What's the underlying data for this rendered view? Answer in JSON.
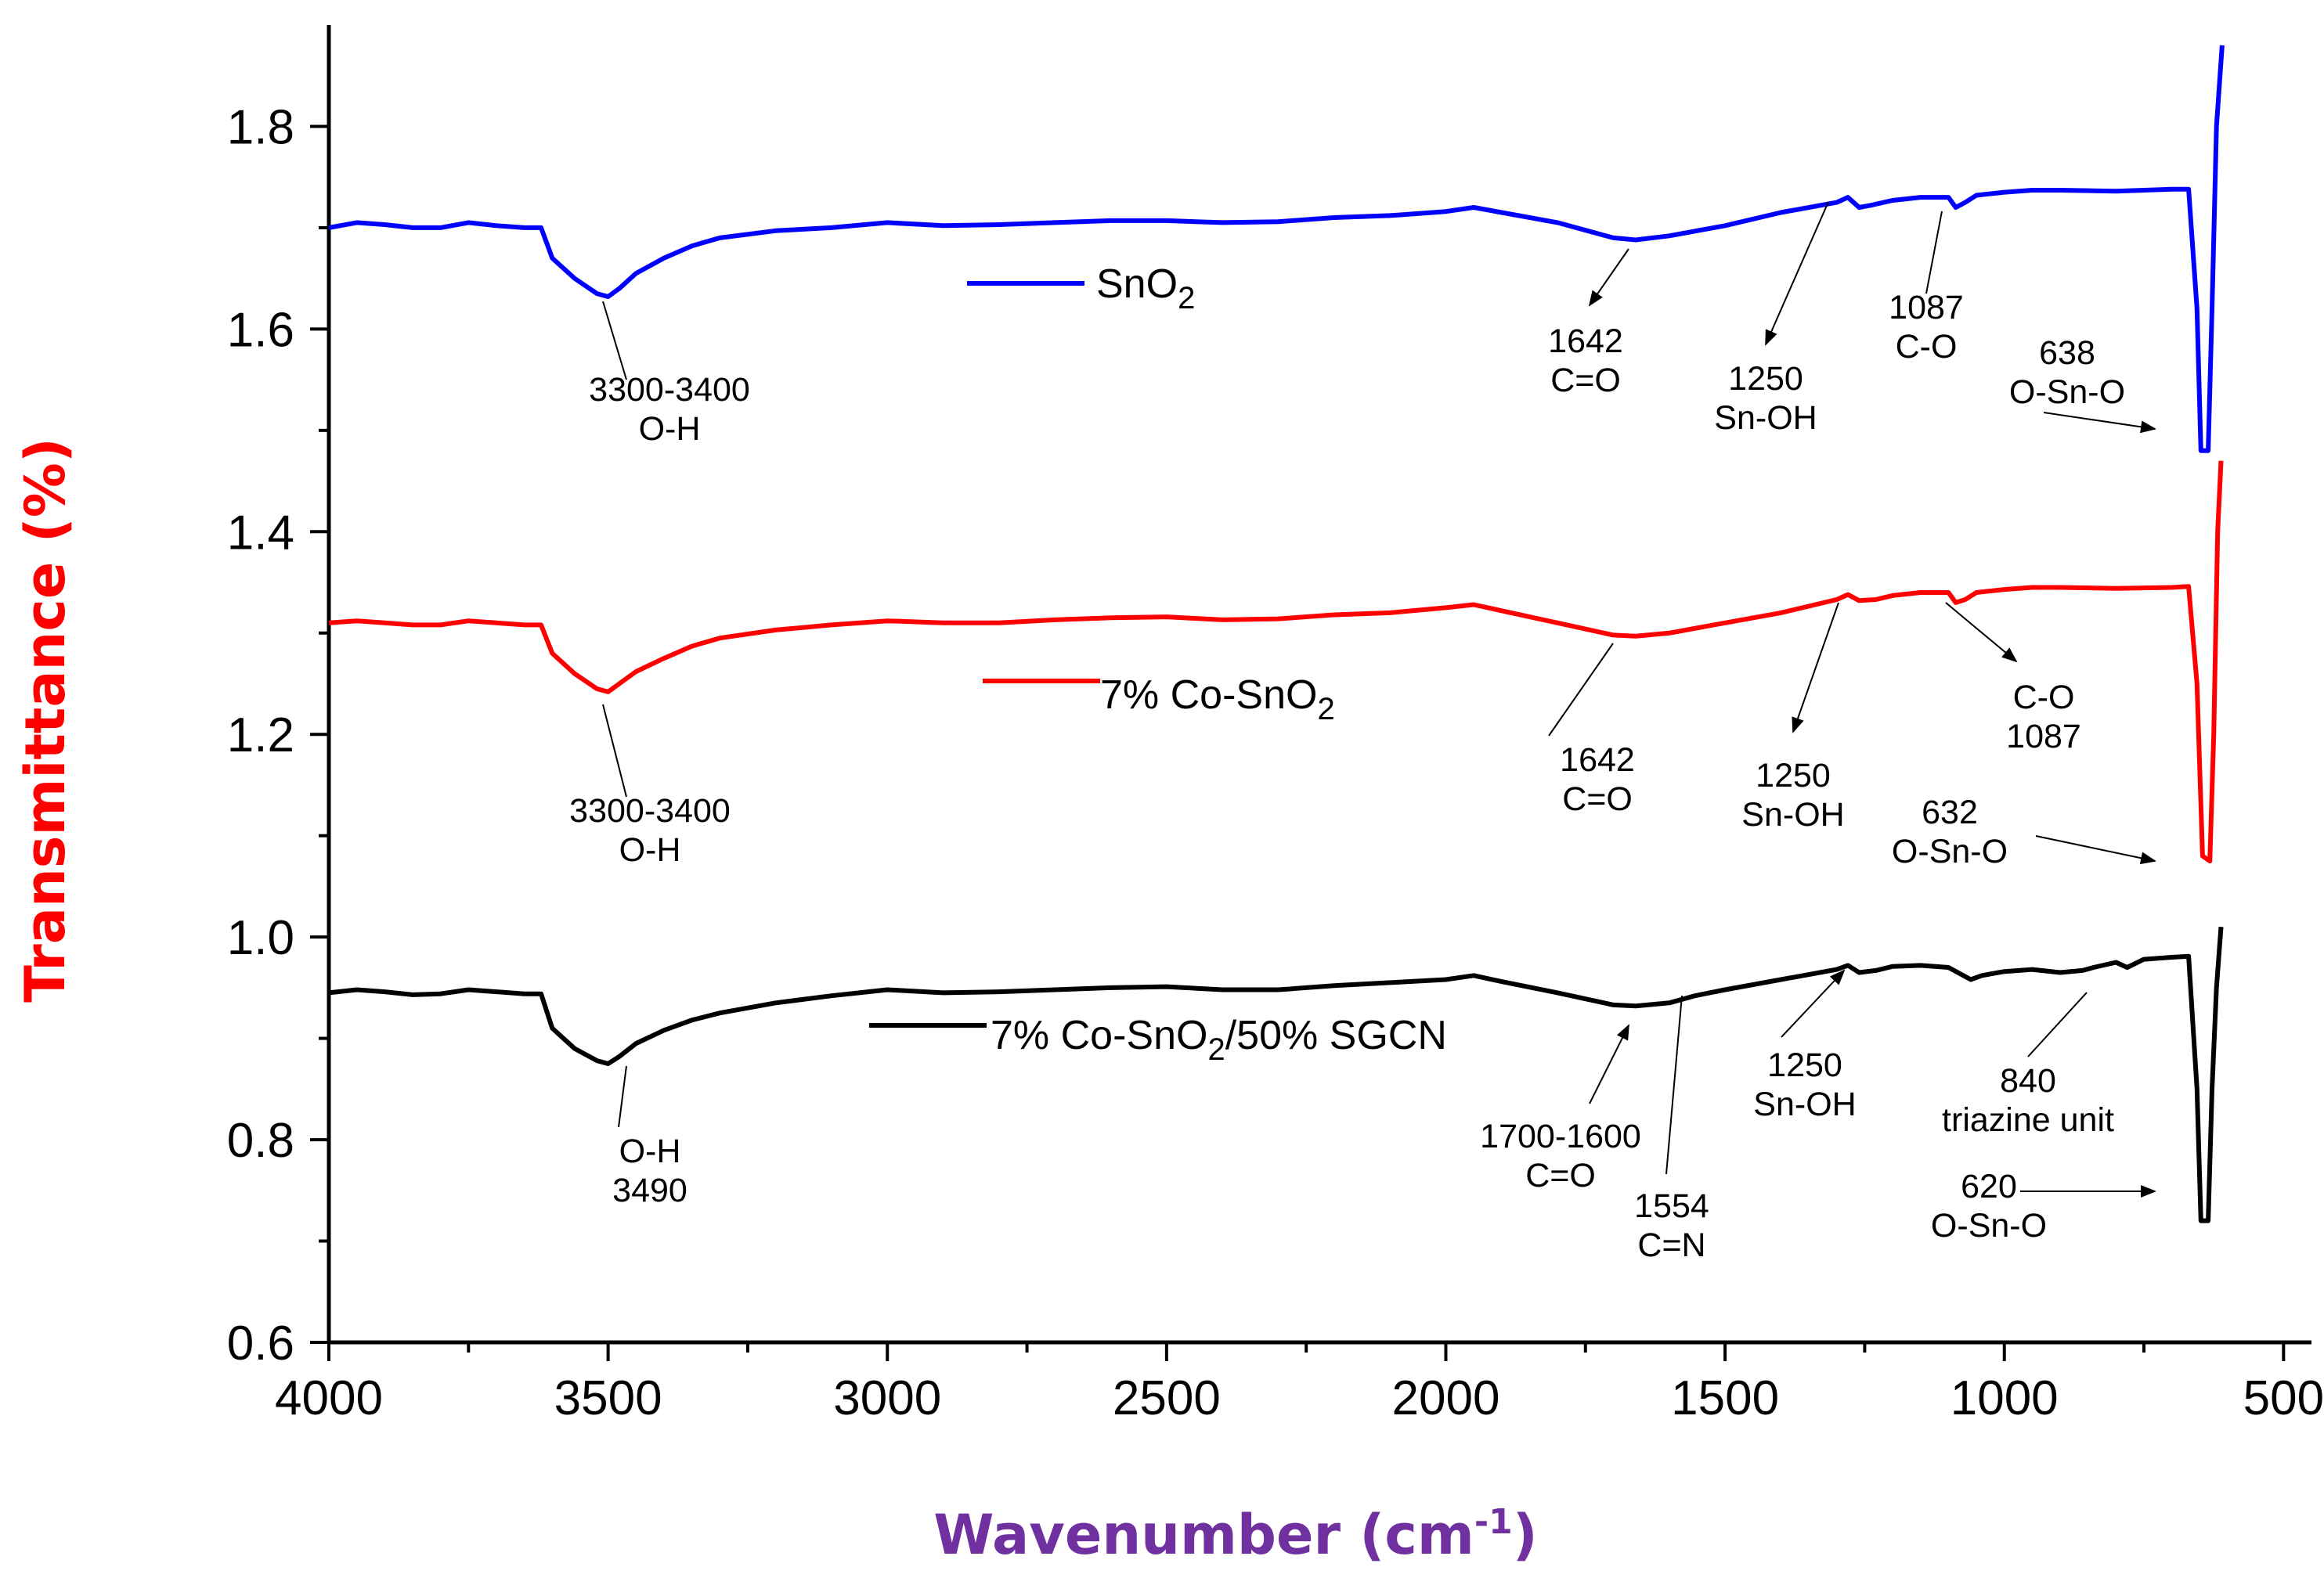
{
  "chart_data": {
    "type": "line",
    "xlabel": "Wavenumber (cm",
    "xlabel_sup": "-1",
    "xlabel_close": ")",
    "ylabel": "Transmittance (%)",
    "xlim": [
      4000,
      450
    ],
    "ylim": [
      0.6,
      1.9
    ],
    "x_ticks": [
      4000,
      3500,
      3000,
      2500,
      2000,
      1500,
      1000,
      500
    ],
    "x_tick_labels": [
      "4000",
      "3500",
      "3000",
      "2500",
      "2000",
      "1500",
      "1000",
      "500"
    ],
    "y_ticks": [
      0.6,
      0.8,
      1.0,
      1.2,
      1.4,
      1.6,
      1.8
    ],
    "y_tick_labels": [
      "0.6",
      "0.8",
      "1.0",
      "1.2",
      "1.4",
      "1.6",
      "1.8"
    ],
    "series": [
      {
        "name": "SnO",
        "name_sub": "2",
        "color": "#0000ff",
        "points": [
          [
            4000,
            1.7
          ],
          [
            3950,
            1.705
          ],
          [
            3900,
            1.703
          ],
          [
            3850,
            1.7
          ],
          [
            3800,
            1.7
          ],
          [
            3750,
            1.705
          ],
          [
            3700,
            1.702
          ],
          [
            3650,
            1.7
          ],
          [
            3620,
            1.7
          ],
          [
            3600,
            1.67
          ],
          [
            3560,
            1.65
          ],
          [
            3520,
            1.635
          ],
          [
            3500,
            1.632
          ],
          [
            3480,
            1.64
          ],
          [
            3450,
            1.655
          ],
          [
            3400,
            1.67
          ],
          [
            3350,
            1.682
          ],
          [
            3300,
            1.69
          ],
          [
            3200,
            1.697
          ],
          [
            3100,
            1.7
          ],
          [
            3000,
            1.705
          ],
          [
            2900,
            1.702
          ],
          [
            2800,
            1.703
          ],
          [
            2700,
            1.705
          ],
          [
            2600,
            1.707
          ],
          [
            2500,
            1.707
          ],
          [
            2400,
            1.705
          ],
          [
            2300,
            1.706
          ],
          [
            2200,
            1.71
          ],
          [
            2100,
            1.712
          ],
          [
            2000,
            1.716
          ],
          [
            1950,
            1.72
          ],
          [
            1900,
            1.715
          ],
          [
            1800,
            1.705
          ],
          [
            1700,
            1.69
          ],
          [
            1660,
            1.688
          ],
          [
            1600,
            1.692
          ],
          [
            1500,
            1.702
          ],
          [
            1400,
            1.715
          ],
          [
            1300,
            1.725
          ],
          [
            1280,
            1.73
          ],
          [
            1260,
            1.72
          ],
          [
            1240,
            1.722
          ],
          [
            1200,
            1.727
          ],
          [
            1150,
            1.73
          ],
          [
            1100,
            1.73
          ],
          [
            1087,
            1.72
          ],
          [
            1070,
            1.725
          ],
          [
            1050,
            1.732
          ],
          [
            1000,
            1.735
          ],
          [
            950,
            1.737
          ],
          [
            900,
            1.737
          ],
          [
            800,
            1.736
          ],
          [
            700,
            1.738
          ],
          [
            670,
            1.738
          ],
          [
            655,
            1.62
          ],
          [
            648,
            1.48
          ],
          [
            635,
            1.48
          ],
          [
            628,
            1.62
          ],
          [
            620,
            1.8
          ],
          [
            610,
            1.88
          ]
        ]
      },
      {
        "name": "7% Co-SnO",
        "name_sub": "2",
        "color": "#ff0000",
        "points": [
          [
            4000,
            1.31
          ],
          [
            3950,
            1.312
          ],
          [
            3900,
            1.31
          ],
          [
            3850,
            1.308
          ],
          [
            3800,
            1.308
          ],
          [
            3750,
            1.312
          ],
          [
            3700,
            1.31
          ],
          [
            3650,
            1.308
          ],
          [
            3620,
            1.308
          ],
          [
            3600,
            1.28
          ],
          [
            3560,
            1.26
          ],
          [
            3520,
            1.245
          ],
          [
            3500,
            1.242
          ],
          [
            3480,
            1.25
          ],
          [
            3450,
            1.262
          ],
          [
            3400,
            1.275
          ],
          [
            3350,
            1.287
          ],
          [
            3300,
            1.295
          ],
          [
            3200,
            1.303
          ],
          [
            3100,
            1.308
          ],
          [
            3000,
            1.312
          ],
          [
            2900,
            1.31
          ],
          [
            2800,
            1.31
          ],
          [
            2700,
            1.313
          ],
          [
            2600,
            1.315
          ],
          [
            2500,
            1.316
          ],
          [
            2400,
            1.313
          ],
          [
            2300,
            1.314
          ],
          [
            2200,
            1.318
          ],
          [
            2100,
            1.32
          ],
          [
            2000,
            1.325
          ],
          [
            1950,
            1.328
          ],
          [
            1900,
            1.322
          ],
          [
            1800,
            1.31
          ],
          [
            1700,
            1.298
          ],
          [
            1660,
            1.297
          ],
          [
            1600,
            1.3
          ],
          [
            1500,
            1.31
          ],
          [
            1400,
            1.32
          ],
          [
            1300,
            1.333
          ],
          [
            1280,
            1.338
          ],
          [
            1260,
            1.332
          ],
          [
            1230,
            1.333
          ],
          [
            1200,
            1.337
          ],
          [
            1150,
            1.34
          ],
          [
            1100,
            1.34
          ],
          [
            1087,
            1.33
          ],
          [
            1070,
            1.333
          ],
          [
            1050,
            1.34
          ],
          [
            1000,
            1.343
          ],
          [
            950,
            1.345
          ],
          [
            900,
            1.345
          ],
          [
            800,
            1.344
          ],
          [
            700,
            1.345
          ],
          [
            670,
            1.346
          ],
          [
            655,
            1.25
          ],
          [
            645,
            1.08
          ],
          [
            632,
            1.075
          ],
          [
            625,
            1.2
          ],
          [
            618,
            1.4
          ],
          [
            612,
            1.47
          ]
        ]
      },
      {
        "name": "7% Co-SnO",
        "name_sub": "2",
        "name_tail": "/50% SGCN",
        "color": "#000000",
        "points": [
          [
            4000,
            0.945
          ],
          [
            3950,
            0.948
          ],
          [
            3900,
            0.946
          ],
          [
            3850,
            0.943
          ],
          [
            3800,
            0.944
          ],
          [
            3750,
            0.948
          ],
          [
            3700,
            0.946
          ],
          [
            3650,
            0.944
          ],
          [
            3620,
            0.944
          ],
          [
            3600,
            0.91
          ],
          [
            3560,
            0.89
          ],
          [
            3520,
            0.878
          ],
          [
            3500,
            0.875
          ],
          [
            3480,
            0.882
          ],
          [
            3450,
            0.895
          ],
          [
            3400,
            0.908
          ],
          [
            3350,
            0.918
          ],
          [
            3300,
            0.925
          ],
          [
            3200,
            0.935
          ],
          [
            3100,
            0.942
          ],
          [
            3000,
            0.948
          ],
          [
            2900,
            0.945
          ],
          [
            2800,
            0.946
          ],
          [
            2700,
            0.948
          ],
          [
            2600,
            0.95
          ],
          [
            2500,
            0.951
          ],
          [
            2400,
            0.948
          ],
          [
            2300,
            0.948
          ],
          [
            2200,
            0.952
          ],
          [
            2100,
            0.955
          ],
          [
            2000,
            0.958
          ],
          [
            1950,
            0.962
          ],
          [
            1900,
            0.956
          ],
          [
            1800,
            0.945
          ],
          [
            1700,
            0.933
          ],
          [
            1660,
            0.932
          ],
          [
            1600,
            0.935
          ],
          [
            1554,
            0.942
          ],
          [
            1500,
            0.948
          ],
          [
            1400,
            0.958
          ],
          [
            1300,
            0.968
          ],
          [
            1280,
            0.972
          ],
          [
            1260,
            0.965
          ],
          [
            1230,
            0.967
          ],
          [
            1200,
            0.971
          ],
          [
            1150,
            0.972
          ],
          [
            1100,
            0.97
          ],
          [
            1060,
            0.958
          ],
          [
            1040,
            0.962
          ],
          [
            1000,
            0.966
          ],
          [
            950,
            0.968
          ],
          [
            900,
            0.965
          ],
          [
            860,
            0.967
          ],
          [
            840,
            0.97
          ],
          [
            800,
            0.975
          ],
          [
            780,
            0.97
          ],
          [
            750,
            0.978
          ],
          [
            700,
            0.98
          ],
          [
            670,
            0.981
          ],
          [
            655,
            0.85
          ],
          [
            648,
            0.72
          ],
          [
            635,
            0.72
          ],
          [
            628,
            0.85
          ],
          [
            620,
            0.95
          ],
          [
            612,
            1.01
          ]
        ]
      }
    ],
    "annotations": [
      {
        "lines": [
          "3300-3400",
          "O-H"
        ],
        "series": 0
      },
      {
        "lines": [
          "1642",
          "C=O"
        ],
        "series": 0
      },
      {
        "lines": [
          "1250",
          "Sn-OH"
        ],
        "series": 0
      },
      {
        "lines": [
          "1087",
          "C-O"
        ],
        "series": 0
      },
      {
        "lines": [
          "638",
          "O-Sn-O"
        ],
        "series": 0
      },
      {
        "lines": [
          "3300-3400",
          "O-H"
        ],
        "series": 1
      },
      {
        "lines": [
          "1642",
          "C=O"
        ],
        "series": 1
      },
      {
        "lines": [
          "1250",
          "Sn-OH"
        ],
        "series": 1
      },
      {
        "lines": [
          "C-O",
          "1087"
        ],
        "series": 1
      },
      {
        "lines": [
          "632",
          "O-Sn-O"
        ],
        "series": 1
      },
      {
        "lines": [
          "O-H",
          "3490"
        ],
        "series": 2
      },
      {
        "lines": [
          "1700-1600",
          "C=O"
        ],
        "series": 2
      },
      {
        "lines": [
          "1554",
          "C=N"
        ],
        "series": 2
      },
      {
        "lines": [
          "1250",
          "Sn-OH"
        ],
        "series": 2
      },
      {
        "lines": [
          "840",
          "triazine unit"
        ],
        "series": 2
      },
      {
        "lines": [
          "620",
          "O-Sn-O"
        ],
        "series": 2
      }
    ]
  }
}
